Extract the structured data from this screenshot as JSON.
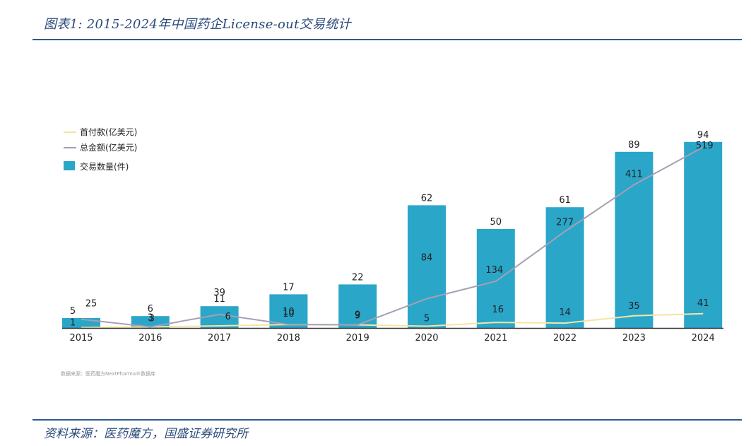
{
  "figure_title": "图表1: 2015-2024年中国药企License-out交易统计",
  "inner_source": "数据来源：医药魔方NextPharma®数据库",
  "bottom_source": "资料来源：医药魔方，国盛证券研究所",
  "colors": {
    "bar": "#2aa6c9",
    "total_line": "#a79fb2",
    "upfront_line": "#f5e5a3",
    "rule": "#2f5a8e",
    "title": "#2a4a7a"
  },
  "chart_data": {
    "type": "bar",
    "categories": [
      "2015",
      "2016",
      "2017",
      "2018",
      "2019",
      "2020",
      "2021",
      "2022",
      "2023",
      "2024"
    ],
    "series": [
      {
        "name": "交易数量(件)",
        "type": "bar",
        "values": [
          5,
          6,
          11,
          17,
          22,
          62,
          50,
          61,
          89,
          94
        ]
      },
      {
        "name": "总金额(亿美元)",
        "type": "line",
        "values": [
          25,
          3,
          39,
          10,
          9,
          84,
          134,
          277,
          411,
          519
        ]
      },
      {
        "name": "首付款(亿美元)",
        "type": "line",
        "values": [
          1,
          3,
          6,
          10,
          9,
          5,
          16,
          14,
          35,
          41
        ]
      }
    ],
    "title": "",
    "xlabel": "",
    "ylabel": "",
    "bar_ylim": [
      0,
      100
    ],
    "amount_ylim": [
      0,
      560
    ],
    "legend": [
      {
        "label": "首付款(亿美元)",
        "kind": "line"
      },
      {
        "label": "总金额(亿美元)",
        "kind": "line"
      },
      {
        "label": "交易数量(件)",
        "kind": "bar"
      }
    ],
    "legend_position": "top-left"
  }
}
